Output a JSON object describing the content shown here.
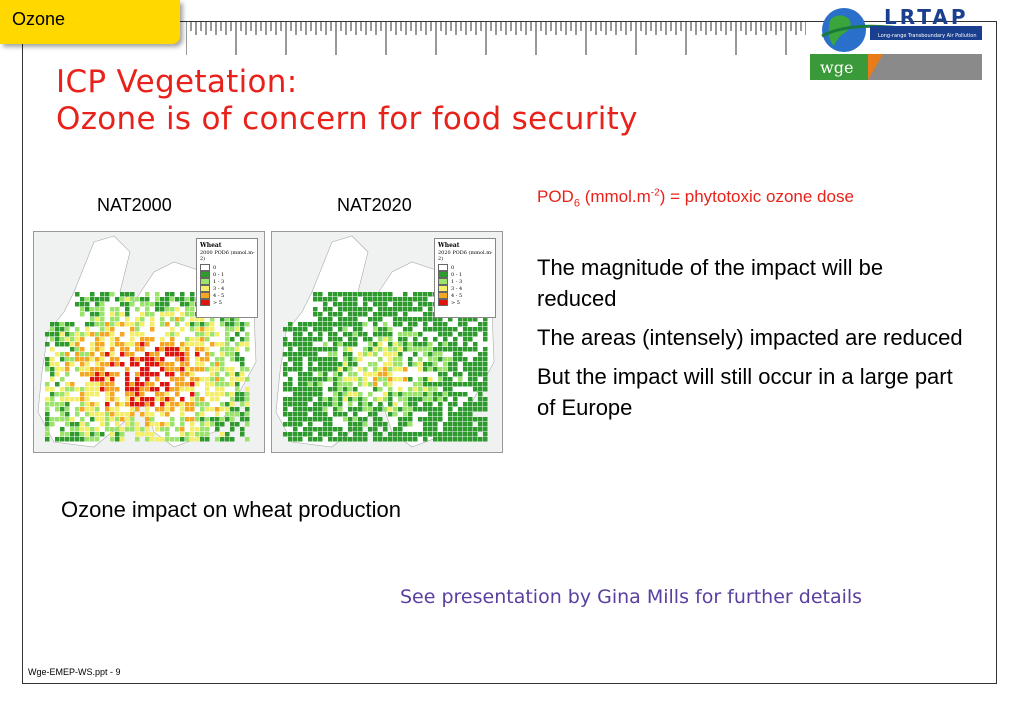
{
  "tab": {
    "label": "Ozone"
  },
  "logo": {
    "main": "LRTAP",
    "tagline": "Long-range Transboundary Air Pollution",
    "wge": "wge"
  },
  "title": {
    "line1": "ICP Vegetation:",
    "line2": "Ozone is of concern for food security"
  },
  "maps": [
    {
      "label": "NAT2000",
      "legend_title": "Wheat",
      "legend_sub": "2000 POD6 (mmol.m-2)"
    },
    {
      "label": "NAT2020",
      "legend_title": "Wheat",
      "legend_sub": "2020 POD6 (mmol.m-2)"
    }
  ],
  "legend_classes": [
    {
      "label": "0",
      "color": "#ffffff"
    },
    {
      "label": "0 - 1",
      "color": "#2e9a2e"
    },
    {
      "label": "1 - 3",
      "color": "#9be36b"
    },
    {
      "label": "3 - 4",
      "color": "#f4ef6a"
    },
    {
      "label": "4 - 5",
      "color": "#f5a623"
    },
    {
      "label": "> 5",
      "color": "#e0140e"
    }
  ],
  "pod": {
    "prefix": "POD",
    "sub": "6",
    "mid": " (mmol.m",
    "sup": "-2",
    "suffix": ") = phytotoxic ozone dose"
  },
  "bullets": [
    "The magnitude of the impact will be reduced",
    "The areas (intensely) impacted are reduced",
    "But the impact will still occur in a large part of Europe"
  ],
  "caption": "Ozone impact on wheat production",
  "see_link": "See presentation by Gina Mills for further details",
  "footer": "Wge-EMEP-WS.ppt - 9"
}
